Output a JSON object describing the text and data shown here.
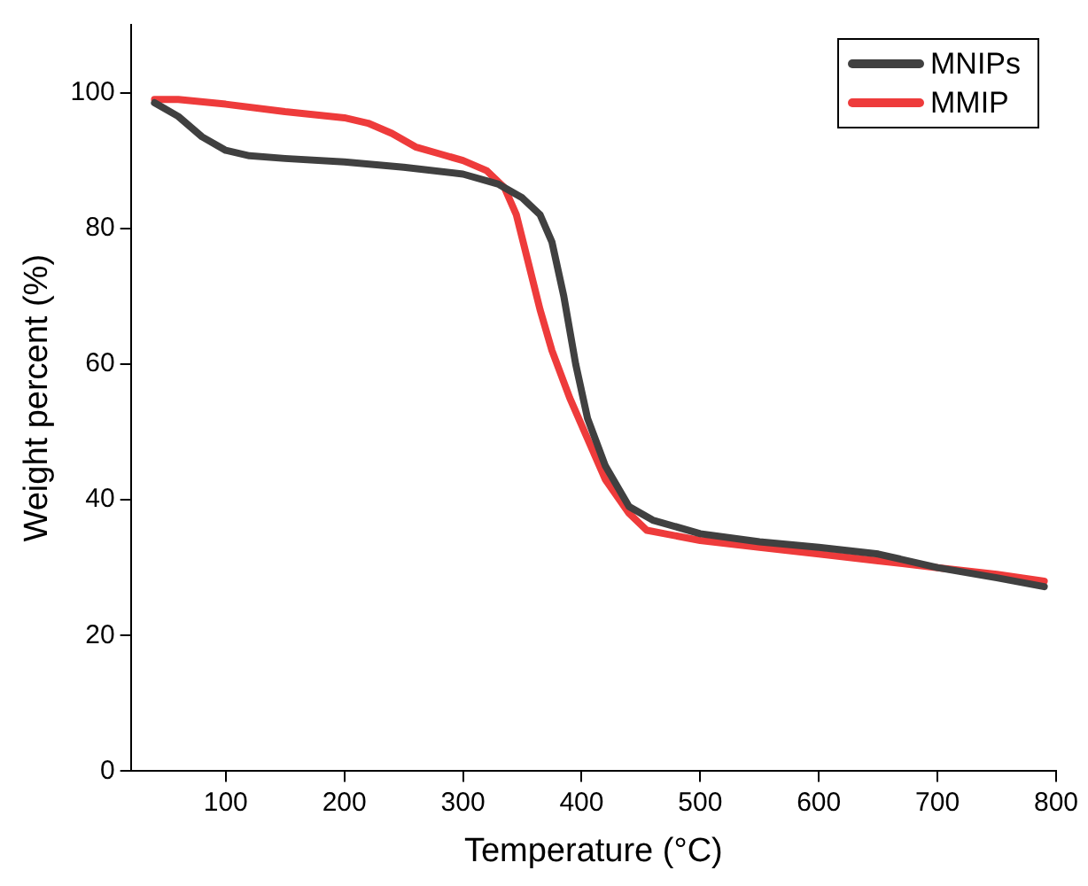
{
  "chart_data": {
    "type": "line",
    "xlabel": "Temperature (°C)",
    "ylabel": "Weight percent (%)",
    "xlim": [
      20,
      800
    ],
    "xticks": [
      100,
      200,
      300,
      400,
      500,
      600,
      700,
      800
    ],
    "ylim": [
      0,
      110
    ],
    "yticks": [
      0,
      20,
      40,
      60,
      80,
      100
    ],
    "grid": false,
    "legend": "top right",
    "marker": "none",
    "line_style": "solid",
    "series": [
      {
        "name": "MNIPs",
        "color": "#404040",
        "x": [
          40,
          60,
          80,
          100,
          120,
          150,
          200,
          250,
          300,
          330,
          350,
          365,
          375,
          385,
          395,
          405,
          420,
          440,
          460,
          500,
          550,
          600,
          650,
          700,
          750,
          790
        ],
        "values": [
          98.5,
          96.5,
          93.5,
          91.5,
          90.7,
          90.3,
          89.8,
          89,
          88,
          86.5,
          84.5,
          82,
          78,
          70,
          60,
          52,
          45,
          39,
          37,
          35,
          33.8,
          33,
          32,
          30,
          28.5,
          27.2
        ]
      },
      {
        "name": "MMIP",
        "color": "#ee3b3b",
        "x": [
          40,
          60,
          100,
          150,
          200,
          220,
          240,
          260,
          280,
          300,
          320,
          335,
          345,
          355,
          365,
          375,
          390,
          405,
          420,
          440,
          455,
          470,
          500,
          550,
          600,
          650,
          700,
          750,
          790
        ],
        "values": [
          99,
          99,
          98.3,
          97.2,
          96.3,
          95.5,
          94,
          92,
          91,
          90,
          88.5,
          86,
          82,
          75,
          68,
          62,
          55,
          49,
          43,
          38,
          35.5,
          35,
          34,
          33,
          32,
          31,
          30,
          29,
          28
        ]
      }
    ]
  }
}
